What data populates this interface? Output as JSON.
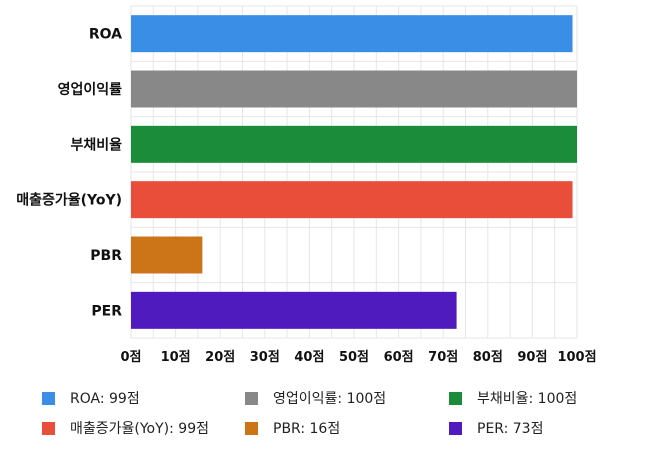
{
  "chart_data": {
    "type": "bar",
    "orientation": "horizontal",
    "categories": [
      "ROA",
      "영업이익률",
      "부채비율",
      "매출증가율(YoY)",
      "PBR",
      "PER"
    ],
    "values": [
      99,
      100,
      100,
      99,
      16,
      73
    ],
    "colors": [
      "#3a8ee6",
      "#888888",
      "#1a8c3a",
      "#e94e3a",
      "#cc7418",
      "#4f1bbf"
    ],
    "xlim": [
      0,
      100
    ],
    "xticks": [
      0,
      10,
      20,
      30,
      40,
      50,
      60,
      70,
      80,
      90,
      100
    ],
    "tick_suffix": "점",
    "grid": true,
    "legend_position": "bottom",
    "legend": [
      {
        "label": "ROA: 99점",
        "color": "#3a8ee6"
      },
      {
        "label": "영업이익률: 100점",
        "color": "#888888"
      },
      {
        "label": "부채비율: 100점",
        "color": "#1a8c3a"
      },
      {
        "label": "매출증가율(YoY): 99점",
        "color": "#e94e3a"
      },
      {
        "label": "PBR: 16점",
        "color": "#cc7418"
      },
      {
        "label": "PER: 73점",
        "color": "#4f1bbf"
      }
    ]
  }
}
